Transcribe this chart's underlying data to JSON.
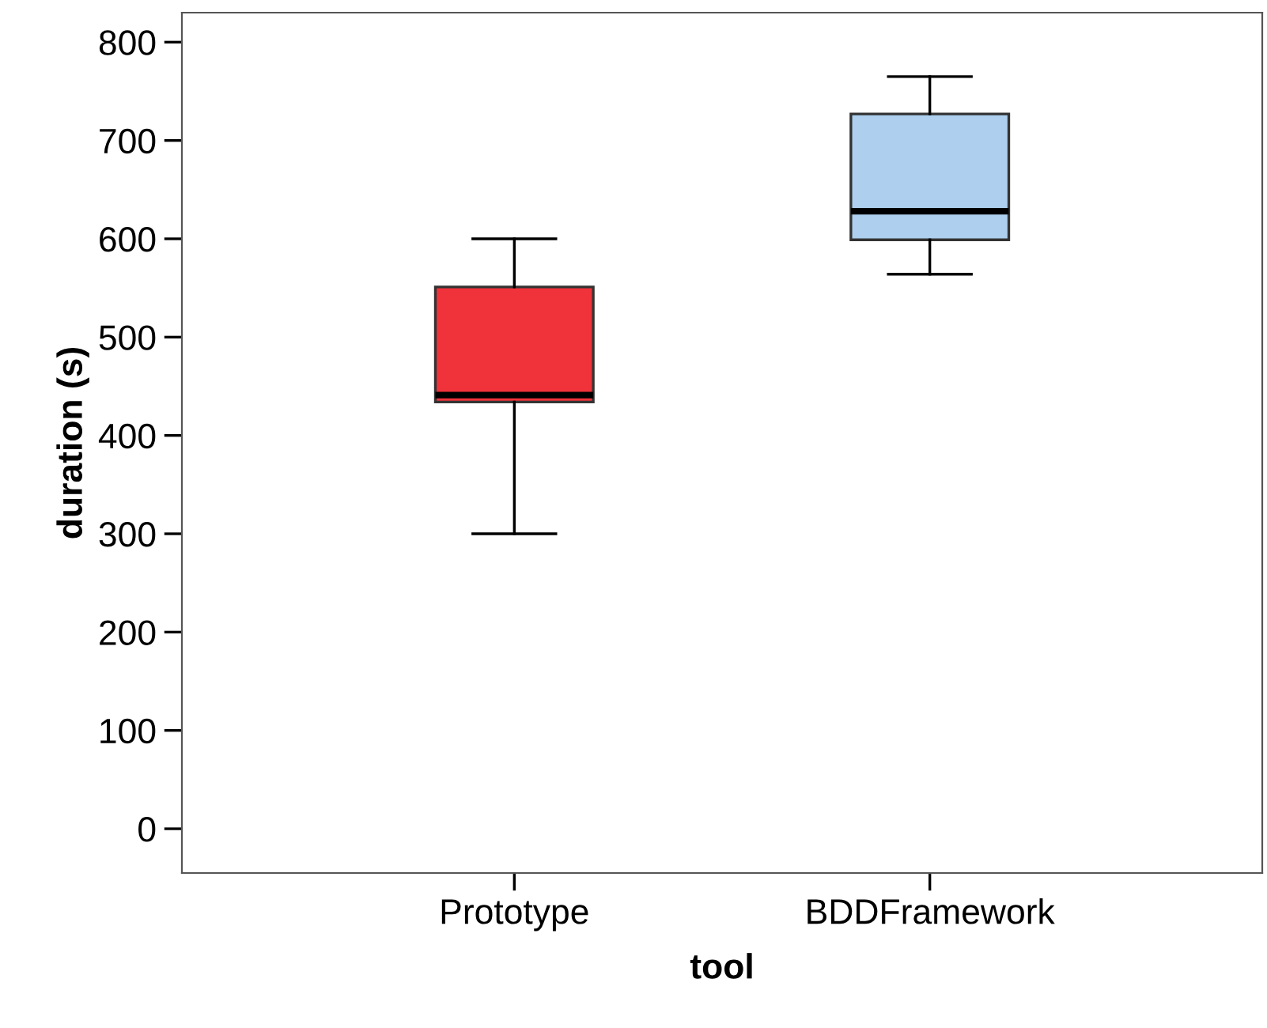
{
  "chart_data": {
    "type": "box",
    "xlabel": "tool",
    "ylabel": "duration (s)",
    "categories": [
      "Prototype",
      "BDDFramework"
    ],
    "colors": [
      "#f0323a",
      "#aed0ee"
    ],
    "boxes": [
      {
        "low": 300,
        "q1": 434,
        "median": 441,
        "q3": 551,
        "high": 600
      },
      {
        "low": 564,
        "q1": 599,
        "median": 628,
        "q3": 727,
        "high": 765
      }
    ],
    "ylim": [
      -45,
      830
    ],
    "yticks": [
      0,
      100,
      200,
      300,
      400,
      500,
      600,
      700,
      800
    ],
    "grid": false,
    "legend": false
  }
}
